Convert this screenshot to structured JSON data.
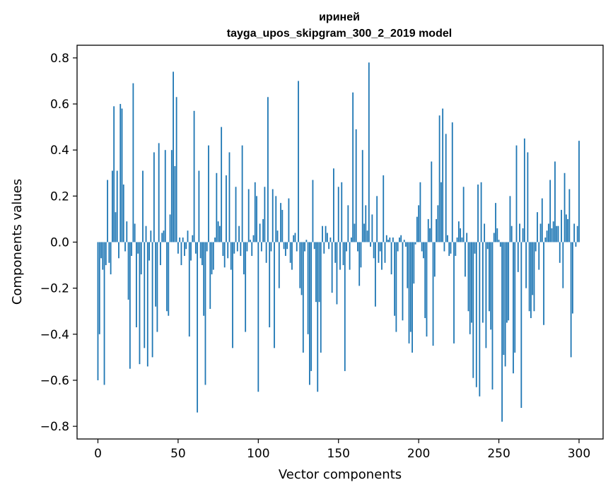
{
  "chart_data": {
    "type": "bar",
    "title_line1": "ириней",
    "title_line2": "tayga_upos_skipgram_300_2_2019 model",
    "xlabel": "Vector components",
    "ylabel": "Components values",
    "xlim": [
      -13,
      315
    ],
    "ylim": [
      -0.855,
      0.855
    ],
    "xticks": [
      0,
      50,
      100,
      150,
      200,
      250,
      300
    ],
    "xtick_labels": [
      "0",
      "50",
      "100",
      "150",
      "200",
      "250",
      "300"
    ],
    "yticks": [
      0.8,
      0.6,
      0.4,
      0.2,
      0.0,
      -0.2,
      -0.4,
      -0.6,
      -0.8
    ],
    "ytick_labels": [
      "0.8",
      "0.6",
      "0.4",
      "0.2",
      "0.0",
      "−0.2",
      "−0.4",
      "−0.6",
      "−0.8"
    ],
    "bar_color": "#1f77b4",
    "values": [
      -0.6,
      -0.4,
      -0.07,
      -0.12,
      -0.62,
      -0.1,
      0.27,
      -0.09,
      -0.14,
      0.31,
      0.59,
      0.13,
      0.31,
      -0.07,
      0.6,
      0.58,
      0.25,
      -0.04,
      0.09,
      -0.25,
      -0.55,
      -0.06,
      0.69,
      0.08,
      -0.37,
      -0.05,
      -0.53,
      -0.14,
      0.31,
      -0.46,
      0.07,
      -0.54,
      -0.08,
      0.05,
      -0.5,
      0.39,
      -0.28,
      -0.39,
      0.43,
      -0.1,
      0.04,
      0.05,
      0.4,
      -0.3,
      -0.32,
      0.12,
      0.4,
      0.74,
      0.33,
      0.63,
      -0.05,
      0.02,
      -0.1,
      0.02,
      -0.06,
      -0.03,
      0.05,
      -0.41,
      -0.08,
      0.03,
      0.57,
      -0.05,
      -0.74,
      0.31,
      -0.07,
      -0.1,
      -0.32,
      -0.62,
      -0.04,
      0.42,
      -0.29,
      -0.14,
      -0.12,
      0.02,
      0.3,
      0.09,
      0.07,
      0.5,
      -0.06,
      -0.11,
      0.29,
      -0.07,
      0.39,
      -0.12,
      -0.46,
      -0.05,
      0.24,
      -0.04,
      0.07,
      -0.06,
      0.42,
      -0.14,
      -0.39,
      -0.04,
      0.23,
      0.01,
      -0.06,
      0.03,
      0.26,
      0.2,
      -0.65,
      0.08,
      -0.04,
      0.1,
      0.24,
      -0.09,
      0.63,
      -0.37,
      -0.04,
      0.23,
      -0.46,
      0.2,
      0.05,
      -0.2,
      0.17,
      0.14,
      -0.03,
      -0.06,
      -0.03,
      0.19,
      -0.09,
      -0.12,
      0.03,
      0.04,
      -0.04,
      0.7,
      -0.2,
      -0.23,
      -0.48,
      -0.04,
      0.01,
      -0.4,
      -0.62,
      -0.56,
      0.27,
      -0.03,
      -0.26,
      -0.65,
      -0.26,
      -0.48,
      0.07,
      -0.05,
      0.07,
      0.04,
      -0.03,
      0.02,
      -0.22,
      0.32,
      -0.09,
      -0.27,
      0.24,
      -0.12,
      0.26,
      -0.1,
      -0.56,
      -0.04,
      0.16,
      -0.12,
      0.02,
      0.65,
      0.08,
      0.49,
      -0.04,
      -0.19,
      -0.11,
      0.4,
      0.08,
      0.16,
      0.05,
      0.78,
      -0.02,
      0.12,
      -0.07,
      -0.28,
      0.2,
      -0.09,
      -0.04,
      -0.12,
      0.29,
      -0.09,
      0.03,
      0.01,
      0.02,
      -0.14,
      0.02,
      -0.32,
      -0.39,
      -0.04,
      0.02,
      0.03,
      -0.34,
      0.01,
      -0.02,
      -0.2,
      -0.44,
      -0.39,
      -0.48,
      -0.18,
      -0.01,
      0.11,
      0.16,
      0.26,
      -0.04,
      -0.07,
      -0.33,
      -0.41,
      0.1,
      0.06,
      0.35,
      -0.45,
      -0.15,
      0.1,
      0.16,
      0.55,
      0.26,
      0.58,
      -0.04,
      0.47,
      0.03,
      -0.06,
      -0.05,
      0.52,
      -0.44,
      -0.06,
      0.02,
      0.09,
      0.06,
      0.02,
      0.24,
      -0.15,
      0.04,
      -0.3,
      -0.4,
      -0.35,
      -0.59,
      -0.05,
      -0.63,
      0.25,
      -0.67,
      0.26,
      -0.35,
      0.08,
      -0.46,
      -0.03,
      -0.3,
      -0.38,
      -0.64,
      0.04,
      0.17,
      0.06,
      0.01,
      -0.02,
      -0.78,
      -0.49,
      -0.54,
      -0.35,
      -0.34,
      0.2,
      0.07,
      -0.57,
      -0.48,
      0.42,
      -0.13,
      0.08,
      -0.72,
      0.06,
      0.45,
      -0.2,
      0.39,
      -0.3,
      -0.33,
      -0.23,
      -0.3,
      -0.04,
      0.13,
      -0.12,
      0.08,
      0.19,
      -0.36,
      0.02,
      0.05,
      0.08,
      0.27,
      0.06,
      0.09,
      0.35,
      0.07,
      0.07,
      -0.09,
      0.14,
      -0.2,
      0.3,
      0.12,
      0.1,
      0.23,
      -0.5,
      -0.31,
      0.08,
      -0.02,
      0.07,
      0.44
    ]
  }
}
